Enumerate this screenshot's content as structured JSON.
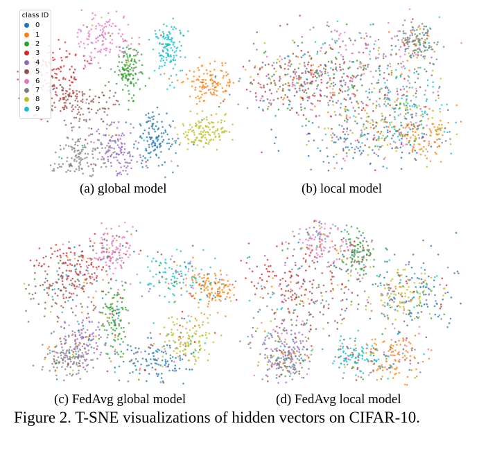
{
  "legend": {
    "title": "class ID",
    "classes": [
      {
        "id": "0",
        "color": "#1f77b4"
      },
      {
        "id": "1",
        "color": "#ff7f0e"
      },
      {
        "id": "2",
        "color": "#2ca02c"
      },
      {
        "id": "3",
        "color": "#d62728"
      },
      {
        "id": "4",
        "color": "#9467bd"
      },
      {
        "id": "5",
        "color": "#8c564b"
      },
      {
        "id": "6",
        "color": "#e377c2"
      },
      {
        "id": "7",
        "color": "#7f7f7f"
      },
      {
        "id": "8",
        "color": "#bcbd22"
      },
      {
        "id": "9",
        "color": "#17becf"
      }
    ]
  },
  "panels": [
    {
      "caption": "(a) global model"
    },
    {
      "caption": "(b) local model"
    },
    {
      "caption": "(c) FedAvg global model"
    },
    {
      "caption": "(d) FedAvg local model"
    }
  ],
  "figure_caption": "Figure 2. T-SNE visualizations of hidden vectors on CIFAR-10.",
  "chart_data": [
    {
      "type": "scatter",
      "title": "",
      "xlabel": "",
      "ylabel": "",
      "series_names_from_legend": true,
      "grid": false,
      "legend_placement": "top-left",
      "caption": "(a) global model"
    },
    {
      "type": "scatter",
      "title": "",
      "xlabel": "",
      "ylabel": "",
      "grid": false,
      "caption": "(b) local model"
    },
    {
      "type": "scatter",
      "title": "",
      "xlabel": "",
      "ylabel": "",
      "grid": false,
      "caption": "(c) FedAvg global model"
    },
    {
      "type": "scatter",
      "title": "",
      "xlabel": "",
      "ylabel": "",
      "grid": false,
      "caption": "(d) FedAvg local model"
    }
  ]
}
